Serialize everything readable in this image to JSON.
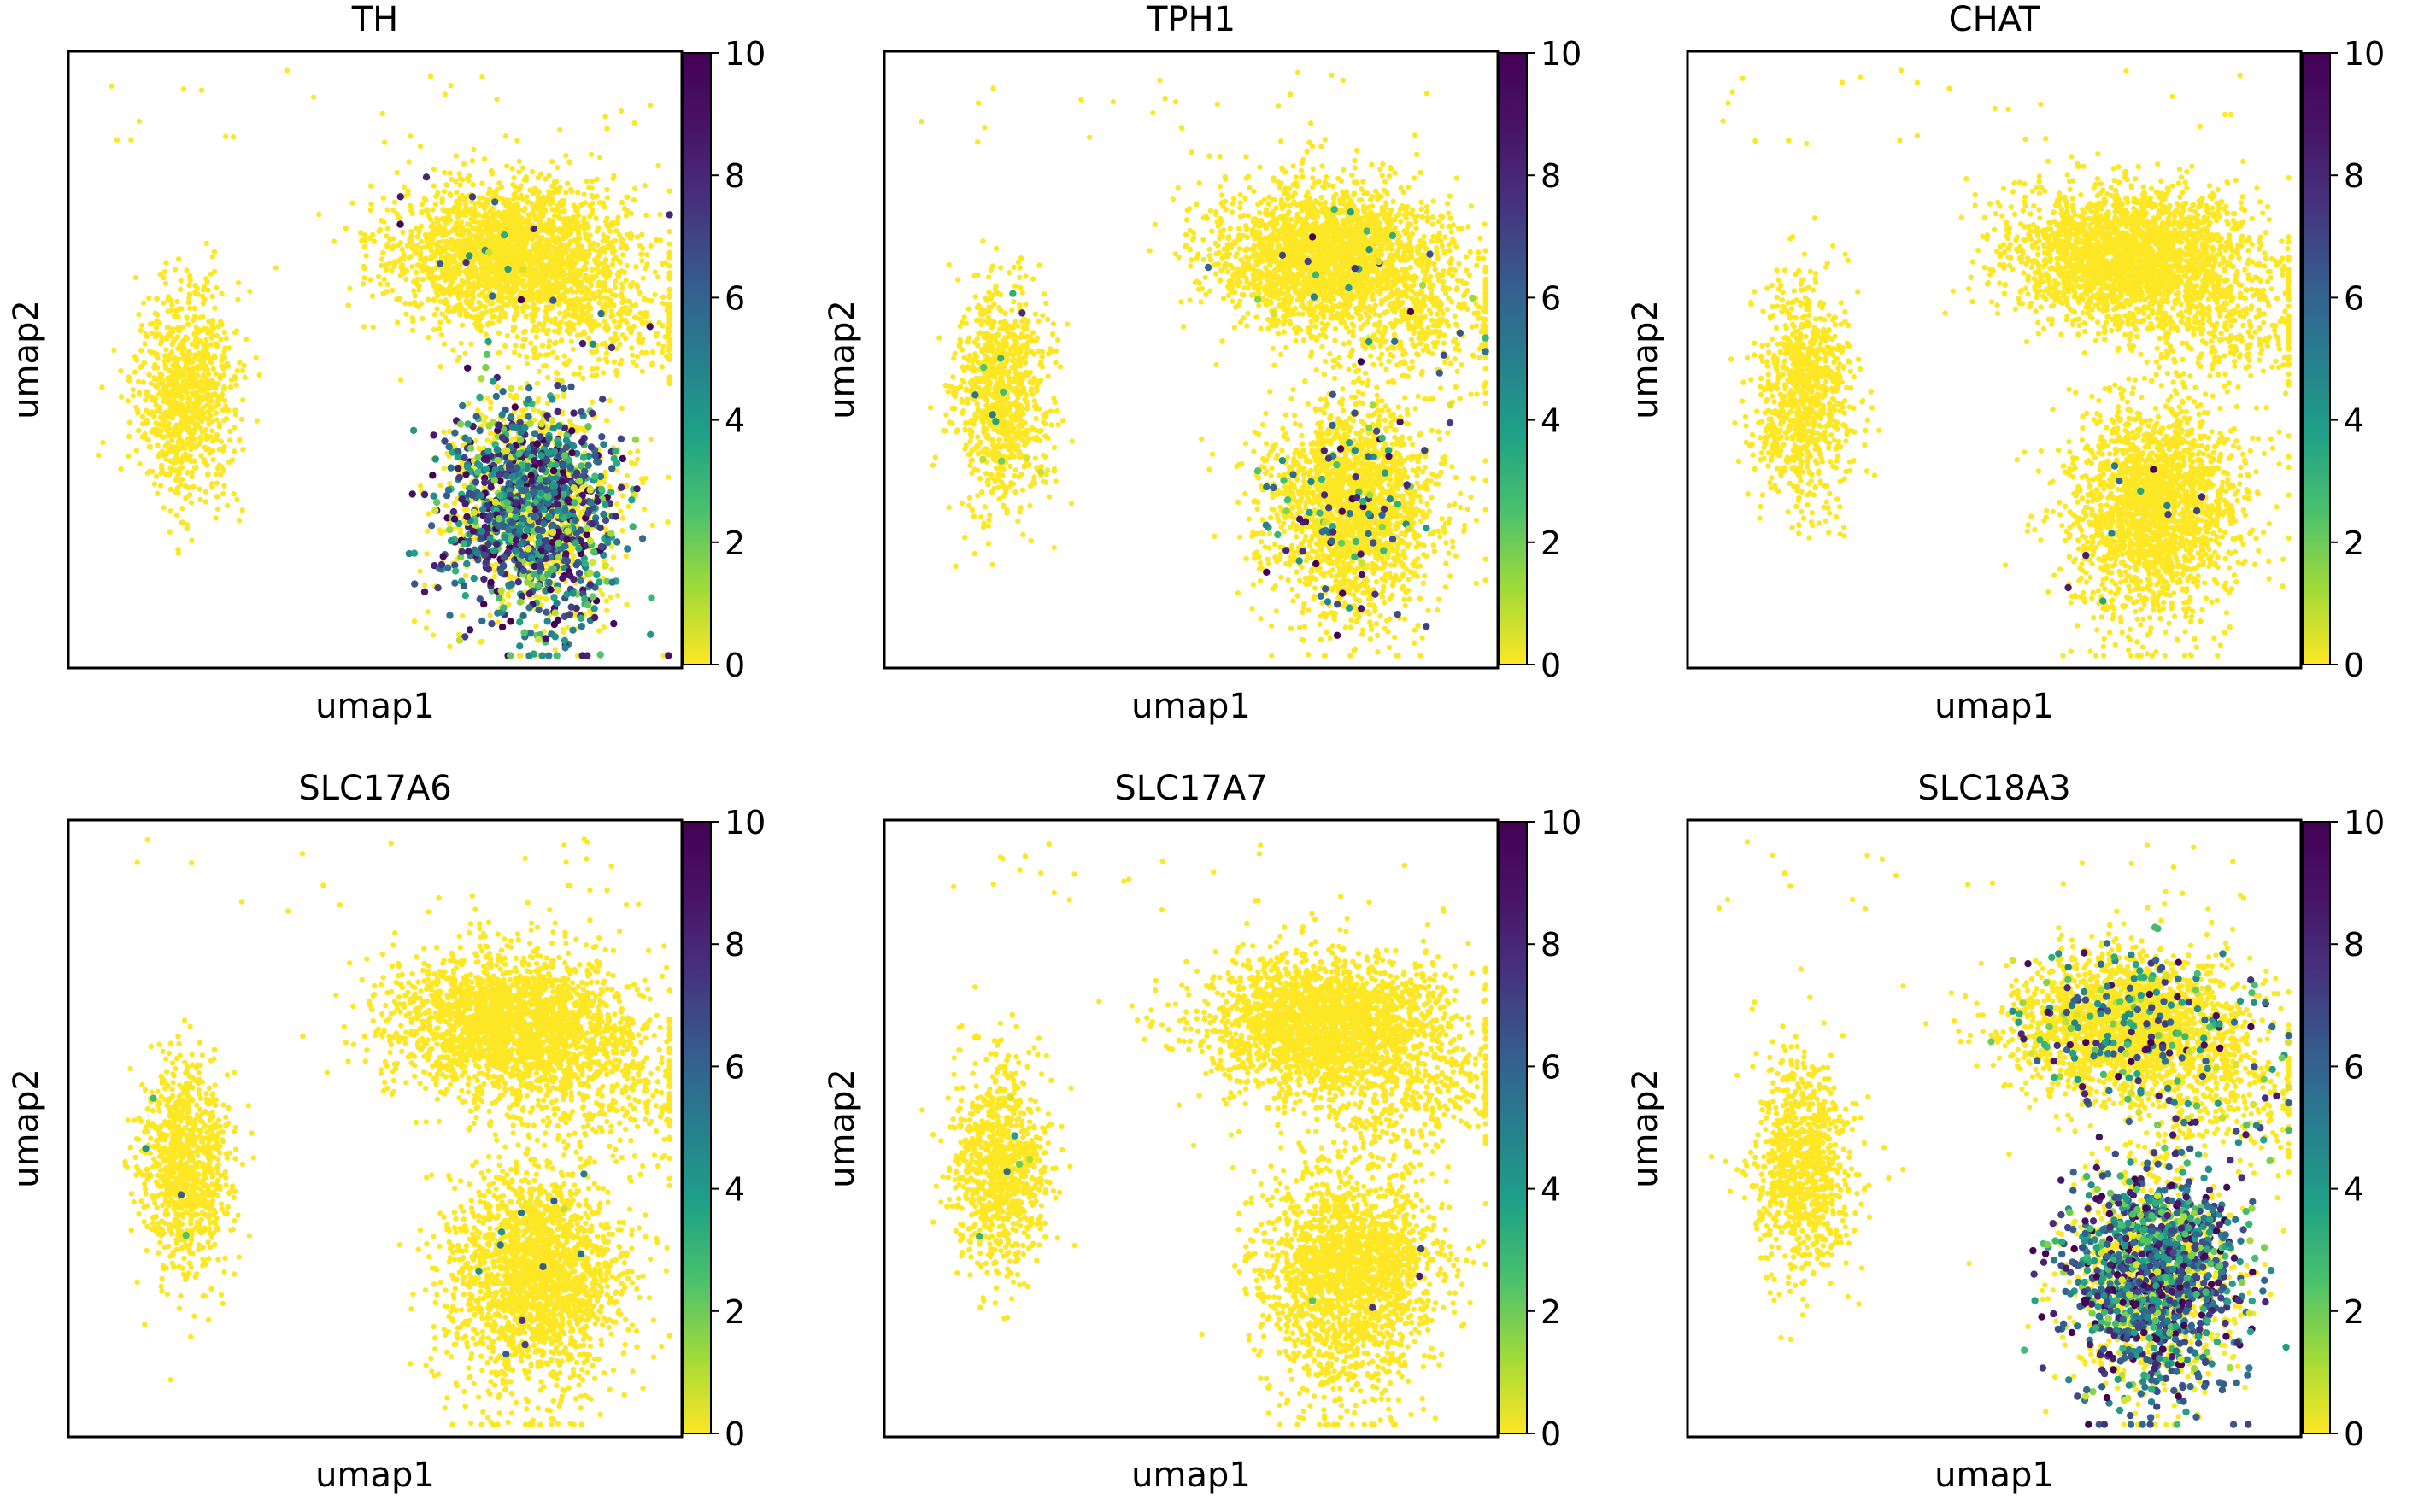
{
  "figure": {
    "colormap": "viridis_r",
    "colors": {
      "low": "#fde725",
      "mid": "#21918c",
      "high": "#440154",
      "axis": "#000000"
    }
  },
  "chart_data": [
    {
      "type": "scatter",
      "title": "TH",
      "xlabel": "umap1",
      "ylabel": "umap2",
      "colorbar": {
        "min": 0,
        "max": 10,
        "ticks": [
          "0",
          "2",
          "4",
          "6",
          "8",
          "10"
        ]
      },
      "expression": {
        "left": 0.0,
        "upper_right": 0.35,
        "lower_right": 4.2
      },
      "upper_right_cluster_rate": 0.01,
      "lower_right_cluster_rate": 0.55,
      "left_cluster_rate": 0.0,
      "seed": 11
    },
    {
      "type": "scatter",
      "title": "TPH1",
      "xlabel": "umap1",
      "ylabel": "umap2",
      "colorbar": {
        "min": 0,
        "max": 10,
        "ticks": [
          "0",
          "2",
          "4",
          "6",
          "8",
          "10"
        ]
      },
      "expression": {
        "left": 0.8,
        "upper_right": 1.2,
        "lower_right": 2.2
      },
      "upper_right_cluster_rate": 0.01,
      "lower_right_cluster_rate": 0.05,
      "left_cluster_rate": 0.01,
      "seed": 23
    },
    {
      "type": "scatter",
      "title": "CHAT",
      "xlabel": "umap1",
      "ylabel": "umap2",
      "colorbar": {
        "min": 0,
        "max": 10,
        "ticks": [
          "0",
          "2",
          "4",
          "6",
          "8",
          "10"
        ]
      },
      "expression": {
        "left": 0.0,
        "upper_right": 0.0,
        "lower_right": 0.6
      },
      "upper_right_cluster_rate": 0.0,
      "lower_right_cluster_rate": 0.006,
      "left_cluster_rate": 0.0,
      "seed": 37
    },
    {
      "type": "scatter",
      "title": "SLC17A6",
      "xlabel": "umap1",
      "ylabel": "umap2",
      "colorbar": {
        "min": 0,
        "max": 10,
        "ticks": [
          "0",
          "2",
          "4",
          "6",
          "8",
          "10"
        ]
      },
      "expression": {
        "left": 0.3,
        "upper_right": 0.0,
        "lower_right": 0.4
      },
      "upper_right_cluster_rate": 0.0,
      "lower_right_cluster_rate": 0.005,
      "left_cluster_rate": 0.003,
      "seed": 41
    },
    {
      "type": "scatter",
      "title": "SLC17A7",
      "xlabel": "umap1",
      "ylabel": "umap2",
      "colorbar": {
        "min": 0,
        "max": 10,
        "ticks": [
          "0",
          "2",
          "4",
          "6",
          "8",
          "10"
        ]
      },
      "expression": {
        "left": 0.6,
        "upper_right": 0.0,
        "lower_right": 0.1
      },
      "upper_right_cluster_rate": 0.0,
      "lower_right_cluster_rate": 0.002,
      "left_cluster_rate": 0.01,
      "seed": 53
    },
    {
      "type": "scatter",
      "title": "SLC18A3",
      "xlabel": "umap1",
      "ylabel": "umap2",
      "colorbar": {
        "min": 0,
        "max": 10,
        "ticks": [
          "0",
          "2",
          "4",
          "6",
          "8",
          "10"
        ]
      },
      "expression": {
        "left": 0.0,
        "upper_right": 2.5,
        "lower_right": 4.8
      },
      "upper_right_cluster_rate": 0.09,
      "lower_right_cluster_rate": 0.6,
      "left_cluster_rate": 0.0,
      "seed": 67
    }
  ]
}
